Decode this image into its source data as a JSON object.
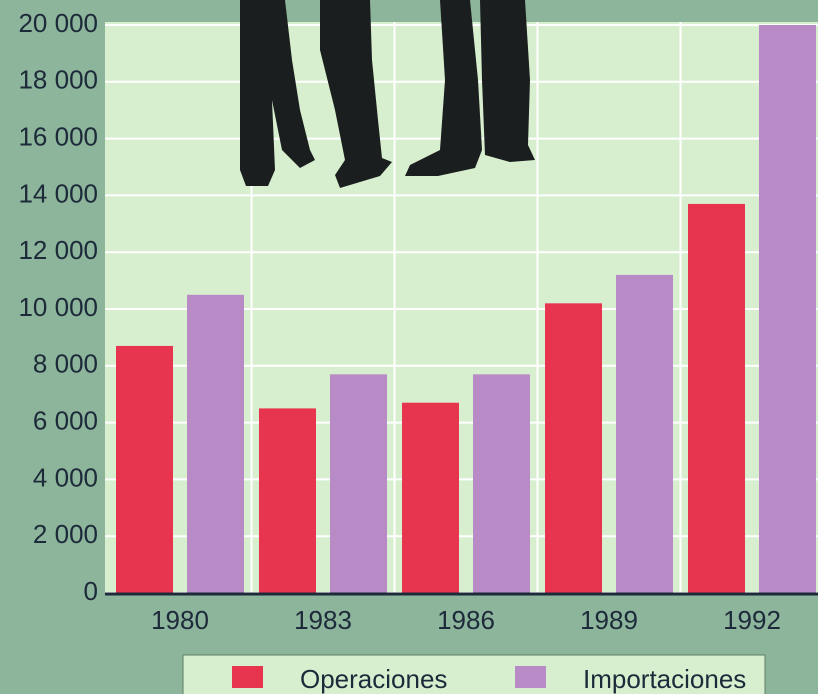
{
  "chart_data": {
    "type": "bar",
    "categories": [
      "1980",
      "1983",
      "1986",
      "1989",
      "1992"
    ],
    "series": [
      {
        "name": "Operaciones",
        "color": "#e8354f",
        "values": [
          8700,
          6500,
          6700,
          10200,
          13700
        ]
      },
      {
        "name": "Importaciones",
        "color": "#b98bc6",
        "values": [
          10500,
          7700,
          7700,
          11200,
          20000
        ]
      }
    ],
    "ylim": [
      0,
      20000
    ],
    "yticks": [
      0,
      {
        "value": 2000,
        "label": "2 000"
      },
      {
        "value": 4000,
        "label": "4 000"
      },
      {
        "value": 6000,
        "label": "6 000"
      },
      {
        "value": 8000,
        "label": "8 000"
      },
      {
        "value": 10000,
        "label": "10 000"
      },
      {
        "value": 12000,
        "label": "12 000"
      },
      {
        "value": 14000,
        "label": "14 000"
      },
      {
        "value": 16000,
        "label": "16 000"
      },
      {
        "value": 18000,
        "label": "18 000"
      },
      {
        "value": 20000,
        "label": "20 000"
      }
    ],
    "grid": true
  }
}
